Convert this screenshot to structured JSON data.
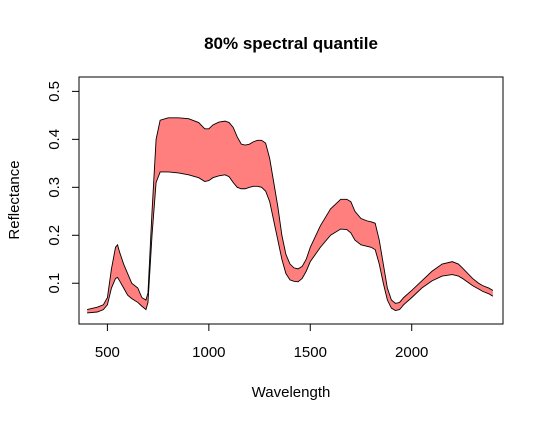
{
  "chart_data": {
    "type": "area",
    "title": "80% spectral quantile",
    "xlabel": "Wavelength",
    "ylabel": "Reflectance",
    "xlim": [
      360,
      2450
    ],
    "ylim": [
      0.015,
      0.53
    ],
    "xticks": [
      500,
      1000,
      1500,
      2000
    ],
    "yticks": [
      0.1,
      0.2,
      0.3,
      0.4,
      0.5
    ],
    "xtick_labels": [
      "500",
      "1000",
      "1500",
      "2000"
    ],
    "ytick_labels": [
      "0.1",
      "0.2",
      "0.3",
      "0.4",
      "0.5"
    ],
    "grid": false,
    "legend": "none",
    "fill_color": "#ff7f7f",
    "line_color": "#000000",
    "series": [
      {
        "role": "upper",
        "x": [
          400,
          450,
          480,
          500,
          520,
          540,
          550,
          560,
          580,
          600,
          620,
          650,
          670,
          690,
          700,
          720,
          740,
          760,
          800,
          850,
          900,
          950,
          980,
          1000,
          1020,
          1050,
          1080,
          1100,
          1120,
          1140,
          1160,
          1180,
          1200,
          1220,
          1240,
          1260,
          1280,
          1300,
          1320,
          1340,
          1360,
          1380,
          1400,
          1420,
          1440,
          1460,
          1480,
          1500,
          1550,
          1600,
          1650,
          1680,
          1700,
          1720,
          1750,
          1780,
          1800,
          1820,
          1840,
          1860,
          1880,
          1900,
          1920,
          1940,
          1960,
          2000,
          2050,
          2100,
          2150,
          2200,
          2230,
          2250,
          2300,
          2330,
          2350,
          2380,
          2400
        ],
        "y": [
          0.045,
          0.05,
          0.055,
          0.07,
          0.13,
          0.175,
          0.18,
          0.165,
          0.14,
          0.12,
          0.1,
          0.09,
          0.07,
          0.065,
          0.08,
          0.25,
          0.4,
          0.44,
          0.445,
          0.445,
          0.443,
          0.435,
          0.422,
          0.422,
          0.43,
          0.436,
          0.438,
          0.435,
          0.425,
          0.405,
          0.39,
          0.388,
          0.39,
          0.395,
          0.398,
          0.398,
          0.392,
          0.36,
          0.31,
          0.26,
          0.2,
          0.16,
          0.14,
          0.132,
          0.13,
          0.135,
          0.15,
          0.175,
          0.22,
          0.255,
          0.275,
          0.275,
          0.27,
          0.25,
          0.235,
          0.23,
          0.228,
          0.225,
          0.19,
          0.14,
          0.09,
          0.065,
          0.058,
          0.06,
          0.07,
          0.085,
          0.105,
          0.125,
          0.14,
          0.145,
          0.14,
          0.132,
          0.11,
          0.1,
          0.095,
          0.09,
          0.085
        ]
      },
      {
        "role": "lower",
        "x": [
          400,
          450,
          480,
          500,
          520,
          540,
          550,
          560,
          580,
          600,
          620,
          650,
          670,
          690,
          700,
          720,
          740,
          760,
          800,
          850,
          900,
          950,
          980,
          1000,
          1020,
          1050,
          1080,
          1100,
          1120,
          1140,
          1160,
          1180,
          1200,
          1220,
          1240,
          1260,
          1280,
          1300,
          1320,
          1340,
          1360,
          1380,
          1400,
          1420,
          1440,
          1460,
          1480,
          1500,
          1550,
          1600,
          1650,
          1680,
          1700,
          1720,
          1750,
          1780,
          1800,
          1820,
          1840,
          1860,
          1880,
          1900,
          1920,
          1940,
          1960,
          2000,
          2050,
          2100,
          2150,
          2200,
          2230,
          2250,
          2300,
          2330,
          2350,
          2380,
          2400
        ],
        "y": [
          0.038,
          0.04,
          0.045,
          0.055,
          0.09,
          0.11,
          0.112,
          0.105,
          0.09,
          0.075,
          0.068,
          0.06,
          0.052,
          0.045,
          0.06,
          0.2,
          0.31,
          0.332,
          0.332,
          0.33,
          0.326,
          0.32,
          0.312,
          0.314,
          0.32,
          0.324,
          0.326,
          0.322,
          0.31,
          0.3,
          0.297,
          0.297,
          0.3,
          0.302,
          0.302,
          0.3,
          0.292,
          0.27,
          0.23,
          0.19,
          0.15,
          0.12,
          0.107,
          0.104,
          0.103,
          0.11,
          0.125,
          0.145,
          0.175,
          0.2,
          0.213,
          0.212,
          0.205,
          0.19,
          0.18,
          0.177,
          0.175,
          0.17,
          0.14,
          0.1,
          0.065,
          0.048,
          0.043,
          0.045,
          0.055,
          0.07,
          0.09,
          0.105,
          0.115,
          0.118,
          0.115,
          0.11,
          0.095,
          0.088,
          0.083,
          0.078,
          0.073
        ]
      }
    ]
  }
}
